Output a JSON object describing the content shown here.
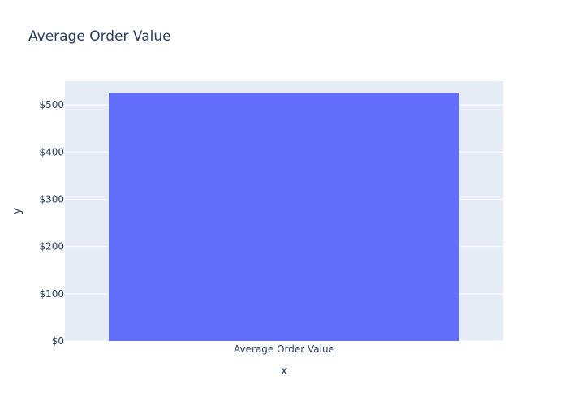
{
  "chart_data": {
    "type": "bar",
    "title": "Average Order Value",
    "categories": [
      "Average Order Value"
    ],
    "values": [
      525
    ],
    "xlabel": "x",
    "ylabel": "y",
    "ylim": [
      0,
      550
    ],
    "yticks": [
      0,
      100,
      200,
      300,
      400,
      500
    ],
    "ytick_labels": [
      "$0",
      "$100",
      "$200",
      "$300",
      "$400",
      "$500"
    ],
    "grid": true,
    "colors": {
      "bar": "#636efa",
      "plot_bg": "#e5ecf6",
      "grid": "#ffffff",
      "text": "#2a3f5f"
    }
  }
}
